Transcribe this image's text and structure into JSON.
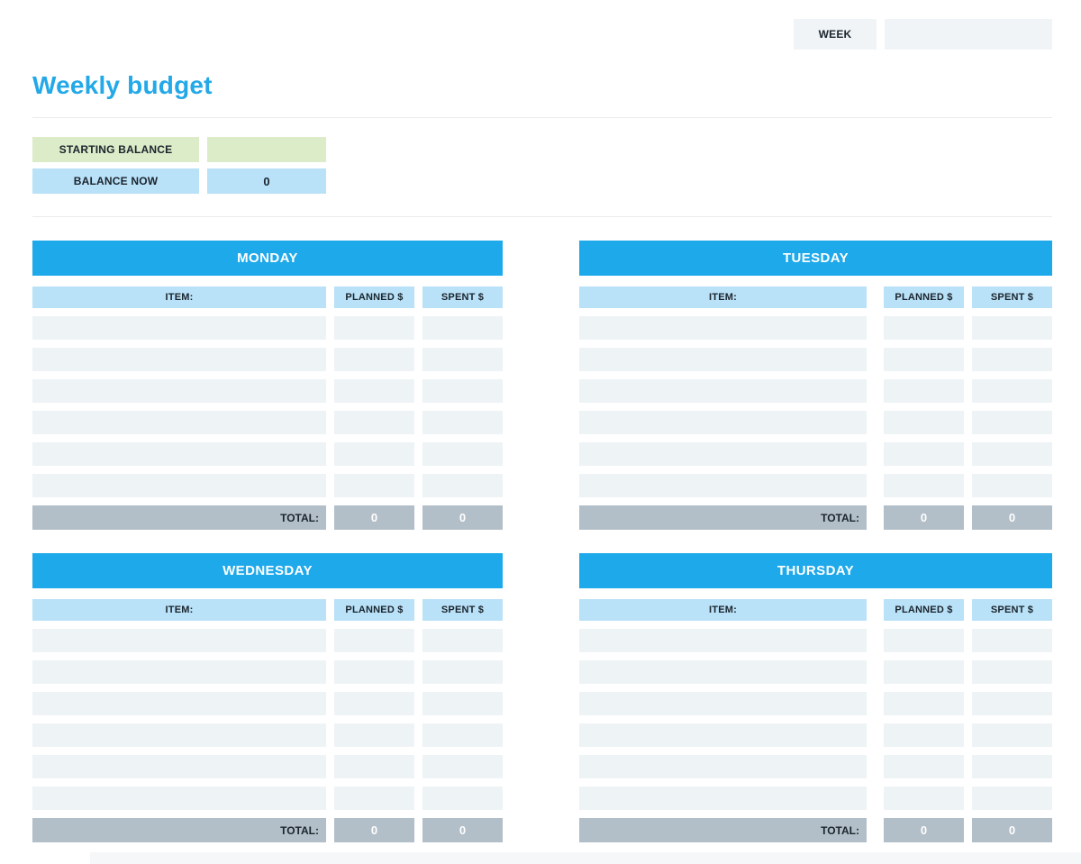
{
  "header": {
    "week_label": "WEEK",
    "week_value": ""
  },
  "title": "Weekly budget",
  "balance": {
    "starting": {
      "label": "STARTING BALANCE",
      "value": ""
    },
    "now": {
      "label": "BALANCE NOW",
      "value": "0"
    }
  },
  "table": {
    "item_header": "ITEM:",
    "planned_header": "PLANNED $",
    "spent_header": "SPENT $",
    "total_label": "TOTAL:",
    "empty_row_count": 6
  },
  "days": [
    {
      "name": "MONDAY",
      "total_planned": "0",
      "total_spent": "0"
    },
    {
      "name": "TUESDAY",
      "total_planned": "0",
      "total_spent": "0"
    },
    {
      "name": "WEDNESDAY",
      "total_planned": "0",
      "total_spent": "0"
    },
    {
      "name": "THURSDAY",
      "total_planned": "0",
      "total_spent": "0"
    }
  ],
  "colors": {
    "accent_blue": "#1ea9ea",
    "title_blue": "#23a8e8",
    "light_blue": "#b9e1f8",
    "light_green": "#dcebc8",
    "row_fill": "#eef3f6",
    "total_gray": "#b3bfc8",
    "box_gray": "#f0f4f7"
  }
}
